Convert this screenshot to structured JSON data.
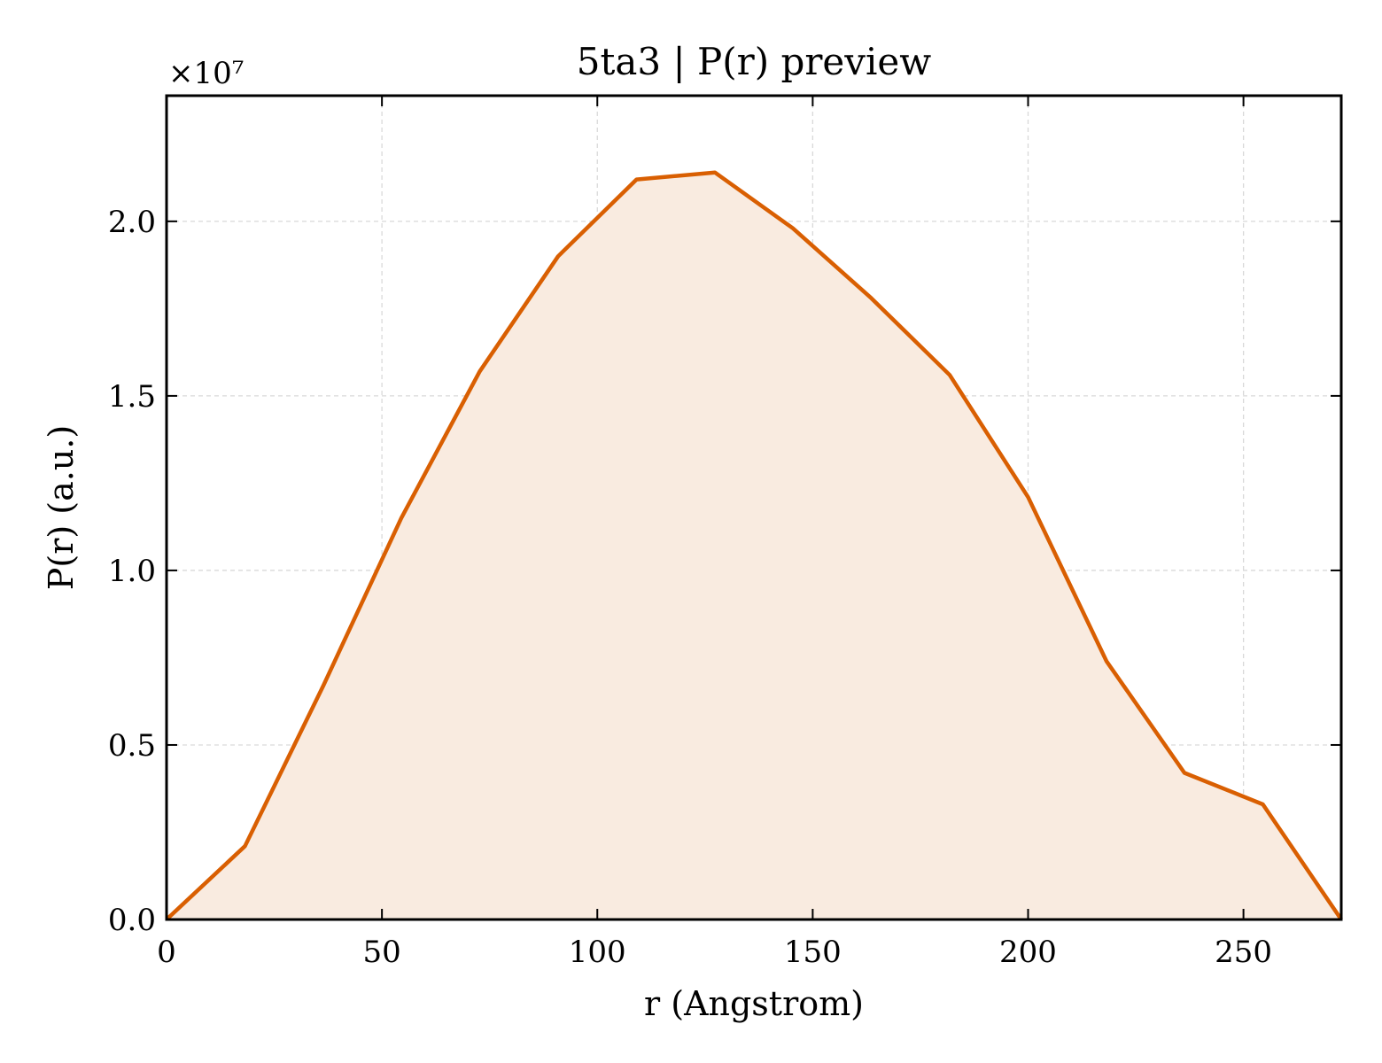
{
  "chart_data": {
    "type": "area",
    "title": "5ta3 | P(r) preview",
    "xlabel": "r (Angstrom)",
    "ylabel": "P(r) (a.u.)",
    "y_multiplier": "×10⁷",
    "xlim": [
      0,
      272.7
    ],
    "ylim": [
      0,
      2.36
    ],
    "xticks": [
      0,
      50,
      100,
      150,
      200,
      250
    ],
    "xtick_labels": [
      "0",
      "50",
      "100",
      "150",
      "200",
      "250"
    ],
    "yticks": [
      0,
      0.5,
      1.0,
      1.5,
      2.0
    ],
    "ytick_labels": [
      "0.0",
      "0.5",
      "1.0",
      "1.5",
      "2.0"
    ],
    "grid": true,
    "series": [
      {
        "x": [
          0,
          18.2,
          36.4,
          54.5,
          72.7,
          90.9,
          109.1,
          127.3,
          145.4,
          163.6,
          181.8,
          200.0,
          218.2,
          236.3,
          254.5,
          272.7
        ],
        "y": [
          0.0,
          0.21,
          0.67,
          1.15,
          1.57,
          1.9,
          2.12,
          2.14,
          1.98,
          1.78,
          1.56,
          1.21,
          0.74,
          0.42,
          0.33,
          0.0
        ],
        "y_unit_scale": 10000000
      }
    ],
    "colors": {
      "line": "#d95f02",
      "fill": "#f9ebe0",
      "grid": "#d9d9d9",
      "axes": "#000000"
    }
  }
}
